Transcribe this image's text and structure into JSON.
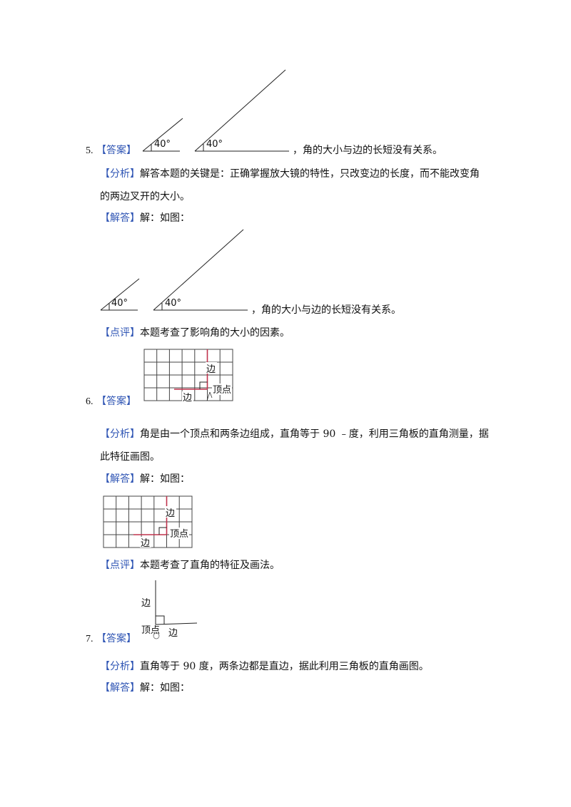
{
  "q5": {
    "number": "5.",
    "answer_tag": "【答案】",
    "angle_label_small": "40°",
    "angle_label_large": "40°",
    "answer_text": "，角的大小与边的长短没有关系。",
    "analysis_tag": "【分析】",
    "analysis_line1": "解答本题的关键是：正确掌握放大镜的特性，只改变边的长度，而不能改变角",
    "analysis_line2": "的两边叉开的大小。",
    "solution_tag": "【解答】",
    "solution_text": "解：如图：",
    "sol_angle_small": "40°",
    "sol_angle_large": "40°",
    "sol_text": "，角的大小与边的长短没有关系。",
    "comment_tag": "【点评】",
    "comment_text": "本题考查了影响角的大小的因素。"
  },
  "q6": {
    "number": "6.",
    "answer_tag": "【答案】",
    "grid_side_label": "边",
    "grid_vertex_label": "顶点",
    "grid_bottom_label": "边",
    "analysis_tag": "【分析】",
    "analysis_line1": "角是由一个顶点和两条边组成，直角等于 90 ﹣度，利用三角板的直角测量，据",
    "analysis_line2": "此特征画图。",
    "solution_tag": "【解答】",
    "solution_text": "解：如图：",
    "sol_grid_side_label": "边",
    "sol_grid_vertex_label": "顶点",
    "sol_grid_bottom_label": "边",
    "comment_tag": "【点评】",
    "comment_text": "本题考查了直角的特征及画法。"
  },
  "q7": {
    "number": "7.",
    "answer_tag": "【答案】",
    "side_label": "边",
    "vertex_label": "顶点",
    "bottom_label": "边",
    "analysis_tag": "【分析】",
    "analysis_line1": "直角等于 90 度，两条边都是直边，据此利用三角板的直角画图。",
    "solution_tag": "【解答】",
    "solution_text": "解：如图："
  },
  "colors": {
    "tag": "#2f55b4",
    "red_line": "#c0334d",
    "grid": "#444444"
  }
}
